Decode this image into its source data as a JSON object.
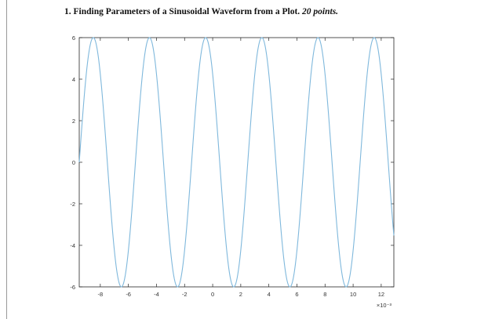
{
  "question": {
    "number": "1.",
    "title": "Finding Parameters of a Sinusoidal Waveform from a Plot.",
    "points": "20 points."
  },
  "chart_data": {
    "type": "line",
    "title": "",
    "xlabel": "",
    "ylabel": "",
    "x_scale_label": "×10⁻³",
    "x_scale_factor": 0.001,
    "xlim": [
      -9.5,
      12.9
    ],
    "ylim": [
      -6,
      6
    ],
    "xticks": [
      -8,
      -6,
      -4,
      -2,
      0,
      2,
      4,
      6,
      8,
      10,
      12
    ],
    "yticks": [
      -6,
      -4,
      -2,
      0,
      2,
      4,
      6
    ],
    "grid": false,
    "series": [
      {
        "amplitude": 6,
        "period_scaled": 4,
        "frequency_hz": 250,
        "peak_at_scaled": -0.5,
        "color": "#7fb8dc",
        "x_range_scaled": [
          -9.5,
          12.9
        ]
      }
    ]
  }
}
